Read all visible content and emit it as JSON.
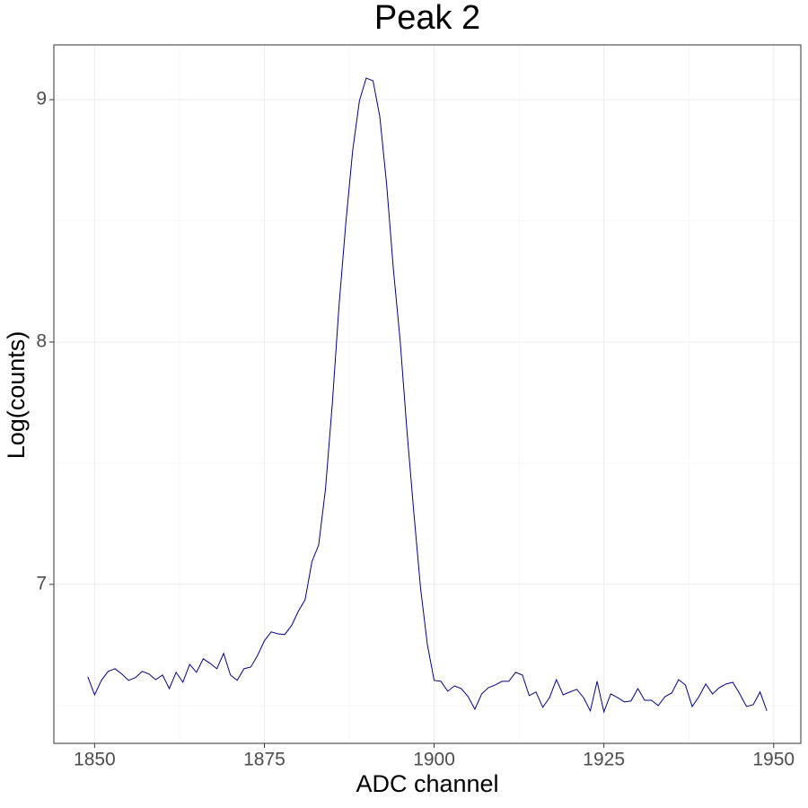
{
  "chart_data": {
    "type": "line",
    "title": "Peak 2",
    "x_label": "ADC channel",
    "y_label": "Log(counts)",
    "x": [
      1849,
      1850,
      1851,
      1852,
      1853,
      1854,
      1855,
      1856,
      1857,
      1858,
      1859,
      1860,
      1861,
      1862,
      1863,
      1864,
      1865,
      1866,
      1867,
      1868,
      1869,
      1870,
      1871,
      1872,
      1873,
      1874,
      1875,
      1876,
      1877,
      1878,
      1879,
      1880,
      1881,
      1882,
      1883,
      1884,
      1885,
      1886,
      1887,
      1888,
      1889,
      1890,
      1891,
      1892,
      1893,
      1894,
      1895,
      1896,
      1897,
      1898,
      1899,
      1900,
      1901,
      1902,
      1903,
      1904,
      1905,
      1906,
      1907,
      1908,
      1909,
      1910,
      1911,
      1912,
      1913,
      1914,
      1915,
      1916,
      1917,
      1918,
      1919,
      1920,
      1921,
      1922,
      1923,
      1924,
      1925,
      1926,
      1927,
      1928,
      1929,
      1930,
      1931,
      1932,
      1933,
      1934,
      1935,
      1936,
      1937,
      1938,
      1939,
      1940,
      1941,
      1942,
      1943,
      1944,
      1945,
      1946,
      1947,
      1948,
      1949
    ],
    "series": [
      {
        "color": "#00008b",
        "values": [
          6.619,
          6.544,
          6.604,
          6.641,
          6.652,
          6.63,
          6.604,
          6.615,
          6.641,
          6.63,
          6.607,
          6.626,
          6.57,
          6.637,
          6.596,
          6.67,
          6.637,
          6.693,
          6.674,
          6.652,
          6.715,
          6.626,
          6.604,
          6.652,
          6.659,
          6.707,
          6.767,
          6.804,
          6.796,
          6.793,
          6.83,
          6.889,
          6.937,
          7.093,
          7.163,
          7.393,
          7.744,
          8.152,
          8.493,
          8.789,
          8.996,
          9.089,
          9.078,
          8.93,
          8.652,
          8.3,
          8.004,
          7.633,
          7.3,
          6.985,
          6.752,
          6.604,
          6.6,
          6.559,
          6.581,
          6.57,
          6.537,
          6.485,
          6.548,
          6.574,
          6.585,
          6.6,
          6.6,
          6.637,
          6.626,
          6.541,
          6.556,
          6.493,
          6.533,
          6.607,
          6.544,
          6.556,
          6.567,
          6.533,
          6.478,
          6.6,
          6.474,
          6.548,
          6.533,
          6.515,
          6.519,
          6.57,
          6.522,
          6.522,
          6.5,
          6.537,
          6.552,
          6.607,
          6.585,
          6.496,
          6.537,
          6.589,
          6.548,
          6.574,
          6.589,
          6.596,
          6.548,
          6.496,
          6.504,
          6.556,
          6.478
        ]
      }
    ],
    "xlim": [
      1844,
      1954
    ],
    "xticks": [
      1850,
      1875,
      1900,
      1925,
      1950
    ],
    "ylim": [
      6.344,
      9.226
    ],
    "yticks": [
      7,
      8,
      9
    ],
    "x_minor_grid": [
      1862.5,
      1887.5,
      1912.5,
      1937.5
    ],
    "y_minor_grid": [
      6.5,
      7.5,
      8.5
    ],
    "grid": true
  }
}
